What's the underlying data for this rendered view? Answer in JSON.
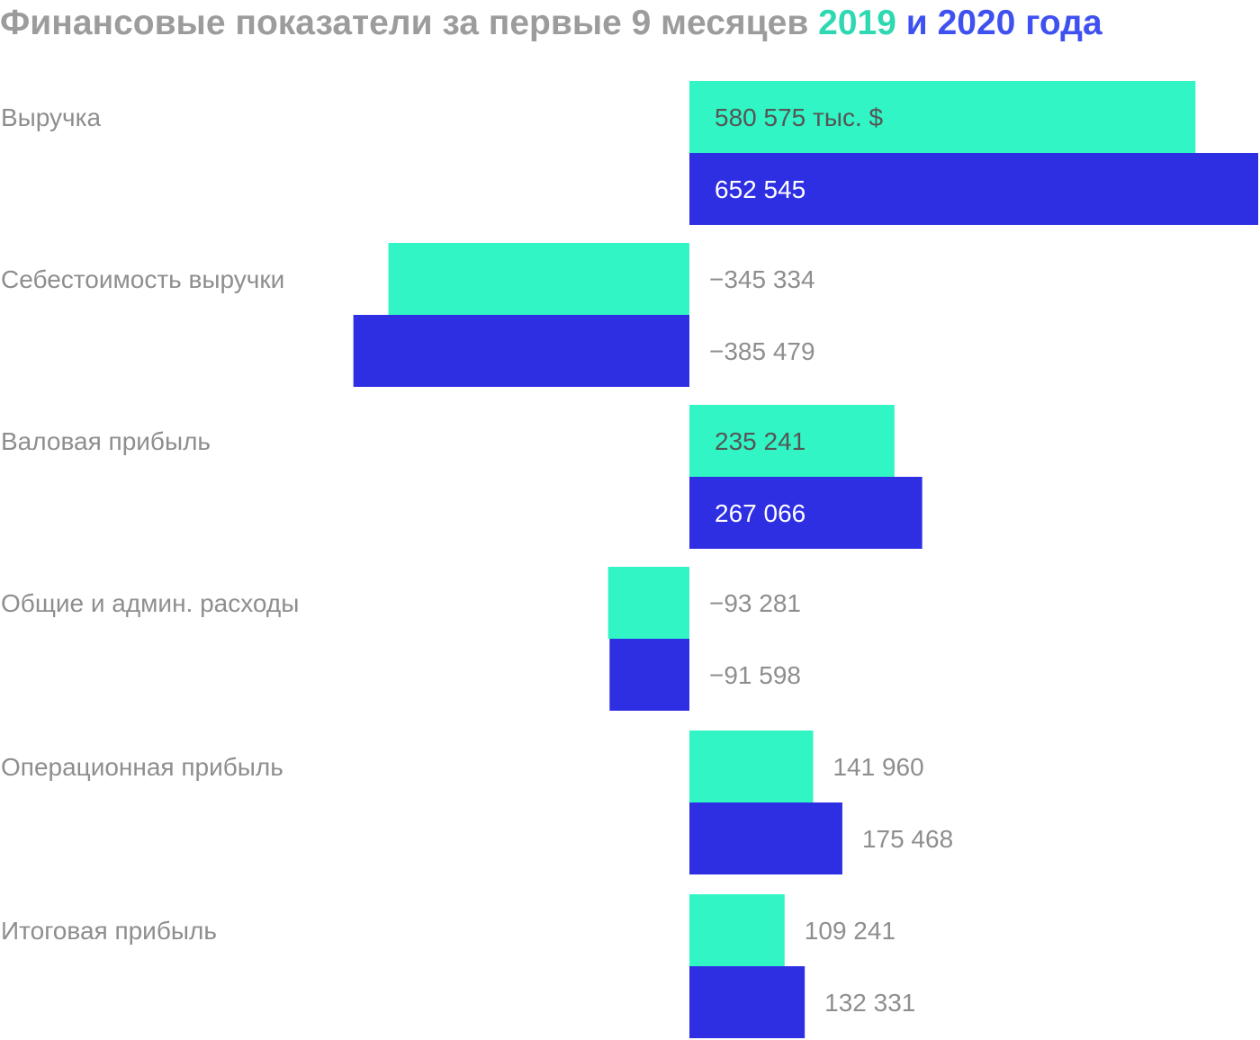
{
  "title": {
    "prefix": "Финансовые показатели за первые 9 месяцев",
    "year_2019": "2019",
    "connector": "и",
    "year_2020": "2020",
    "suffix": "года"
  },
  "colors": {
    "series_2019": "#31f5c4",
    "series_2020": "#2e2ee3",
    "label_gray": "#8e8e8e",
    "label_dark": "#555555",
    "label_white": "#ffffff"
  },
  "chart_data": {
    "type": "bar",
    "orientation": "horizontal",
    "categories": [
      "Выручка",
      "Себестоимость выручки",
      "Валовая прибыль",
      "Общие и админ. расходы",
      "Операционная прибыль",
      "Итоговая прибыль"
    ],
    "series": [
      {
        "values": [
          580575,
          -345334,
          235241,
          -93281,
          141960,
          109241
        ],
        "labels": [
          "580 575 тыс. $",
          "−345 334",
          "235 241",
          "−93 281",
          "141 960",
          "109 241"
        ]
      },
      {
        "values": [
          652545,
          -385479,
          267066,
          -91598,
          175468,
          132331
        ],
        "labels": [
          "652 545",
          "−385 479",
          "267 066",
          "−91 598",
          "175 468",
          "132 331"
        ]
      }
    ],
    "unit": "тыс. $",
    "xlim": [
      -400000,
      660000
    ],
    "grid": false,
    "legend": "title"
  }
}
